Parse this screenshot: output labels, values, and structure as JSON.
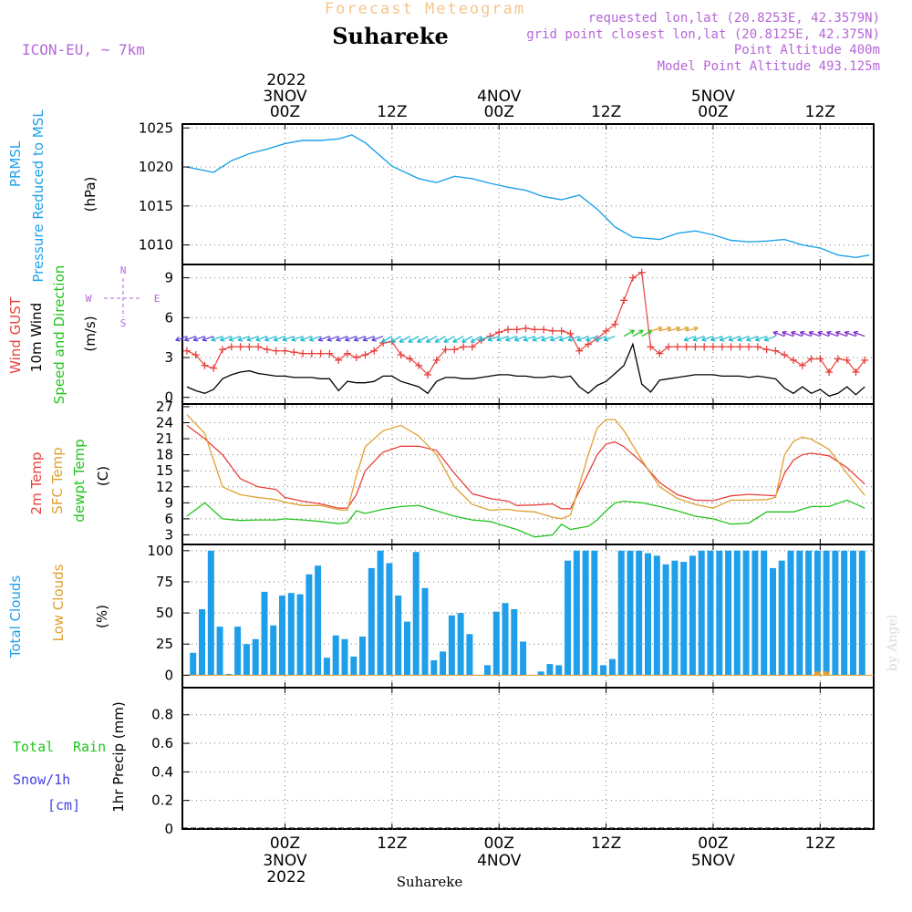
{
  "header": {
    "subtitle": "Forecast Meteogram",
    "location": "Suhareke",
    "model": "ICON-EU, ~ 7km",
    "requested": "requested lon,lat (20.8253E, 42.3579N)",
    "gridpoint": "grid point closest lon,lat (20.8125E, 42.375N)",
    "point_alt": "Point Altitude 400m",
    "model_alt": "Model Point Altitude 493.125m",
    "footer_location": "Suhareke",
    "credit": "by Angel"
  },
  "time_axis": {
    "year": "2022",
    "days": [
      {
        "hour": 0,
        "date": "3NOV"
      },
      {
        "hour": 24,
        "date": "4NOV"
      },
      {
        "hour": 48,
        "date": "5NOV"
      }
    ],
    "ticks": [
      {
        "hour": 0,
        "label": "00Z"
      },
      {
        "hour": 12,
        "label": "12Z"
      },
      {
        "hour": 24,
        "label": "00Z"
      },
      {
        "hour": 36,
        "label": "12Z"
      },
      {
        "hour": 48,
        "label": "00Z"
      },
      {
        "hour": 60,
        "label": "12Z"
      }
    ],
    "range_hours": [
      -11.5,
      66
    ]
  },
  "panels": {
    "pressure": {
      "label1": "PRMSL",
      "label2": "Pressure Reduced to MSL",
      "unit": "(hPa)"
    },
    "wind": {
      "label_gust": "Wind GUST",
      "label_wind": "10m Wind",
      "label_dir": "Speed and Direction",
      "unit": "(m/s)",
      "compass_n": "N",
      "compass_s": "S",
      "compass_w": "W",
      "compass_e": "E"
    },
    "temp": {
      "label_2m": "2m Temp",
      "label_sfc": "SFC Temp",
      "label_dew": "dewpt Temp",
      "unit": "(C)"
    },
    "clouds": {
      "label_total": "Total Clouds",
      "label_low": "Low Clouds",
      "unit": "(%)"
    },
    "precip": {
      "label_rain1": "Total",
      "label_rain2": "Rain",
      "label_snow1": "Snow/1h",
      "label_snow2": "[cm]",
      "unit": "1hr Precip (mm)"
    }
  },
  "colors": {
    "pressure": "#1fa2e8",
    "gust": "#e8413c",
    "wind": "#000000",
    "sfc": "#e0a030",
    "dew": "#22c41e",
    "cloud": "#1f9fea",
    "rain": "#22c41e",
    "snow": "#4242e6",
    "header_purple": "#b566d8",
    "header_orange": "#f5c58c",
    "title_black": "#000000"
  },
  "chart_data": [
    {
      "type": "line",
      "name": "pressure",
      "title": "PRMSL Pressure Reduced to MSL",
      "ylabel": "hPa",
      "ylim": [
        1007.5,
        1025.5
      ],
      "yticks": [
        1010,
        1015,
        1020,
        1025
      ],
      "x": [
        -11,
        -8,
        -6,
        -4,
        -2,
        0,
        2,
        4,
        6,
        7.5,
        9,
        12,
        15,
        17,
        19,
        21,
        23,
        25,
        27,
        29,
        31,
        33,
        35,
        37,
        39,
        42,
        44,
        46,
        48,
        50,
        52,
        54,
        56,
        58,
        60,
        62,
        64,
        65.5
      ],
      "values": [
        1020,
        1019.3,
        1020.8,
        1021.7,
        1022.3,
        1023,
        1023.4,
        1023.4,
        1023.6,
        1024.1,
        1023.1,
        1020.1,
        1018.5,
        1018,
        1018.8,
        1018.5,
        1017.9,
        1017.4,
        1017,
        1016.2,
        1015.8,
        1016.4,
        1014.6,
        1012.3,
        1011,
        1010.7,
        1011.5,
        1011.8,
        1011.3,
        1010.6,
        1010.4,
        1010.5,
        1010.7,
        1010,
        1009.6,
        1008.7,
        1008.4,
        1008.7
      ]
    },
    {
      "type": "line",
      "name": "wind",
      "title": "Wind GUST / 10m Wind Speed",
      "ylabel": "m/s",
      "ylim": [
        -0.5,
        10
      ],
      "yticks": [
        0,
        3,
        6,
        9
      ],
      "x": [
        -11,
        -10,
        -9,
        -8,
        -7,
        -6,
        -5,
        -4,
        -3,
        -2,
        -1,
        0,
        1,
        2,
        3,
        4,
        5,
        6,
        7,
        8,
        9,
        10,
        11,
        12,
        13,
        14,
        15,
        16,
        17,
        18,
        19,
        20,
        21,
        22,
        23,
        24,
        25,
        26,
        27,
        28,
        29,
        30,
        31,
        32,
        33,
        34,
        35,
        36,
        37,
        38,
        39,
        40,
        41,
        42,
        43,
        44,
        45,
        46,
        47,
        48,
        49,
        50,
        51,
        52,
        53,
        54,
        55,
        56,
        57,
        58,
        59,
        60,
        61,
        62,
        63,
        64,
        65
      ],
      "series": [
        {
          "name": "Wind GUST",
          "color": "#e8413c",
          "values": [
            3.5,
            3.2,
            2.4,
            2.2,
            3.6,
            3.8,
            3.8,
            3.8,
            3.8,
            3.6,
            3.5,
            3.5,
            3.4,
            3.3,
            3.3,
            3.3,
            3.3,
            2.8,
            3.3,
            3.0,
            3.2,
            3.5,
            4.1,
            4.2,
            3.2,
            2.9,
            2.4,
            1.7,
            2.8,
            3.6,
            3.6,
            3.8,
            3.8,
            4.3,
            4.6,
            4.9,
            5.1,
            5.1,
            5.2,
            5.1,
            5.1,
            5.0,
            5.0,
            4.8,
            3.5,
            4.0,
            4.4,
            5.0,
            5.5,
            7.3,
            9.0,
            9.4,
            3.8,
            3.3,
            3.8,
            3.8,
            3.8,
            3.8,
            3.8,
            3.8,
            3.8,
            3.8,
            3.8,
            3.8,
            3.8,
            3.6,
            3.5,
            3.2,
            2.8,
            2.4,
            2.9,
            2.9,
            1.9,
            2.9,
            2.8,
            1.9,
            2.8
          ]
        },
        {
          "name": "10m Wind",
          "color": "#000000",
          "values": [
            0.8,
            0.5,
            0.3,
            0.6,
            1.4,
            1.7,
            1.9,
            2.0,
            1.8,
            1.7,
            1.6,
            1.6,
            1.5,
            1.5,
            1.5,
            1.4,
            1.4,
            0.5,
            1.2,
            1.1,
            1.1,
            1.2,
            1.6,
            1.6,
            1.2,
            1.0,
            0.8,
            0.3,
            1.2,
            1.5,
            1.5,
            1.4,
            1.4,
            1.5,
            1.6,
            1.7,
            1.7,
            1.6,
            1.6,
            1.5,
            1.5,
            1.6,
            1.5,
            1.6,
            0.8,
            0.3,
            0.9,
            1.2,
            1.8,
            2.4,
            4.0,
            1.0,
            0.4,
            1.3,
            1.4,
            1.5,
            1.6,
            1.7,
            1.7,
            1.7,
            1.6,
            1.6,
            1.6,
            1.5,
            1.6,
            1.5,
            1.4,
            0.7,
            0.3,
            0.8,
            0.3,
            0.6,
            0.1,
            0.3,
            0.8,
            0.2,
            0.8
          ]
        }
      ]
    },
    {
      "type": "line",
      "name": "temperature",
      "title": "2m Temp / SFC Temp / dewpt Temp",
      "ylabel": "C",
      "ylim": [
        1.2,
        27.5
      ],
      "yticks": [
        3,
        6,
        9,
        12,
        15,
        18,
        21,
        24,
        27
      ],
      "x": [
        -11,
        -9,
        -7,
        -5,
        -3,
        -1,
        0,
        2,
        4,
        6,
        7,
        8,
        9,
        11,
        13,
        15,
        17,
        19,
        21,
        23,
        25,
        26,
        28,
        30,
        31,
        32,
        34,
        35,
        36,
        37,
        38,
        40,
        42,
        44,
        46,
        48,
        50,
        52,
        54,
        55,
        56,
        57,
        58,
        59,
        61,
        63,
        65
      ],
      "series": [
        {
          "name": "2m Temp",
          "color": "#e8413c",
          "values": [
            23.5,
            21.0,
            18.0,
            13.5,
            12.0,
            11.5,
            10.0,
            9.3,
            8.8,
            8.0,
            8.0,
            10.5,
            15.0,
            18.5,
            19.6,
            19.6,
            18.8,
            14.5,
            10.7,
            9.8,
            9.3,
            8.5,
            8.6,
            8.8,
            7.9,
            7.9,
            14.5,
            18.0,
            20.0,
            20.4,
            19.5,
            16.6,
            12.8,
            10.5,
            9.5,
            9.4,
            10.3,
            10.6,
            10.4,
            10.3,
            14.5,
            17.0,
            18.0,
            18.3,
            17.8,
            15.6,
            12.5
          ]
        },
        {
          "name": "SFC Temp",
          "color": "#e0a030",
          "values": [
            25.5,
            22.0,
            12.0,
            10.5,
            10.0,
            9.6,
            9.1,
            8.5,
            8.5,
            7.7,
            7.6,
            14.0,
            19.5,
            22.5,
            23.5,
            21.5,
            18.0,
            12.0,
            8.7,
            7.6,
            7.8,
            7.5,
            7.3,
            6.3,
            6.0,
            6.7,
            18.0,
            23.0,
            24.6,
            24.6,
            22.5,
            17.0,
            12.0,
            9.8,
            8.7,
            8.0,
            9.5,
            9.5,
            9.6,
            10.0,
            18.0,
            20.5,
            21.3,
            20.9,
            19.0,
            14.5,
            10.4
          ]
        },
        {
          "name": "dewpt Temp",
          "color": "#22c41e",
          "values": [
            6.5,
            9.0,
            6.0,
            5.7,
            5.8,
            5.8,
            6.0,
            5.8,
            5.5,
            5.1,
            5.3,
            7.5,
            7.0,
            7.8,
            8.3,
            8.5,
            7.5,
            6.5,
            5.8,
            5.5,
            4.5,
            4.0,
            2.6,
            3.0,
            5.0,
            4.0,
            4.6,
            5.8,
            7.5,
            9.0,
            9.3,
            9.0,
            8.3,
            7.5,
            6.5,
            6.0,
            5.0,
            5.2,
            7.3,
            7.3,
            7.3,
            7.3,
            7.8,
            8.3,
            8.3,
            9.5,
            8.0
          ]
        }
      ]
    },
    {
      "type": "bar",
      "name": "clouds",
      "title": "Total Clouds / Low Clouds",
      "ylabel": "%",
      "ylim": [
        -10,
        105
      ],
      "yticks": [
        0,
        25,
        50,
        75,
        100
      ],
      "x_start": -11.3,
      "x_step": 1,
      "series": [
        {
          "name": "Total Clouds",
          "color": "#1f9fea",
          "values": [
            24,
            18,
            53,
            100,
            39,
            1,
            39,
            25,
            29,
            67,
            40,
            64,
            66,
            65,
            81,
            88,
            14,
            32,
            29,
            15,
            31,
            86,
            100,
            90,
            64,
            43,
            99,
            70,
            12,
            19,
            48,
            50,
            33,
            0,
            8,
            51,
            58,
            53,
            27,
            0,
            3,
            9,
            8,
            92,
            100,
            100,
            100,
            8,
            13,
            100,
            100,
            100,
            98,
            96,
            89,
            92,
            91,
            96,
            100,
            100,
            100,
            100,
            100,
            100,
            100,
            100,
            86,
            92,
            100,
            100,
            100,
            100,
            100,
            100,
            100,
            100,
            100
          ]
        },
        {
          "name": "Low Clouds",
          "color": "#e0a030",
          "values": [
            0,
            0,
            0,
            0,
            0,
            0,
            0,
            0,
            0,
            0,
            0,
            0,
            0,
            0,
            0,
            0,
            0,
            0,
            0,
            0,
            0,
            0,
            0,
            0,
            0,
            0,
            0,
            0,
            0,
            0,
            0,
            0,
            0,
            0,
            0,
            0,
            0,
            0,
            0,
            0,
            0,
            0,
            0,
            0,
            0,
            0,
            0,
            0,
            0,
            0,
            0,
            0,
            0,
            0,
            0,
            0,
            0,
            0,
            0,
            0,
            0,
            0,
            0,
            0,
            0,
            0,
            0,
            0,
            0,
            0,
            0,
            3,
            3,
            0,
            0,
            0,
            0
          ]
        }
      ]
    },
    {
      "type": "bar",
      "name": "precip",
      "title": "1hr Precip",
      "ylabel": "mm",
      "ylim": [
        0,
        0.99
      ],
      "yticks": [
        0,
        0.2,
        0.4,
        0.6,
        0.8
      ],
      "series": [
        {
          "name": "Total Rain",
          "color": "#22c41e",
          "values": []
        },
        {
          "name": "Snow/1h",
          "color": "#4242e6",
          "values": []
        }
      ]
    }
  ]
}
